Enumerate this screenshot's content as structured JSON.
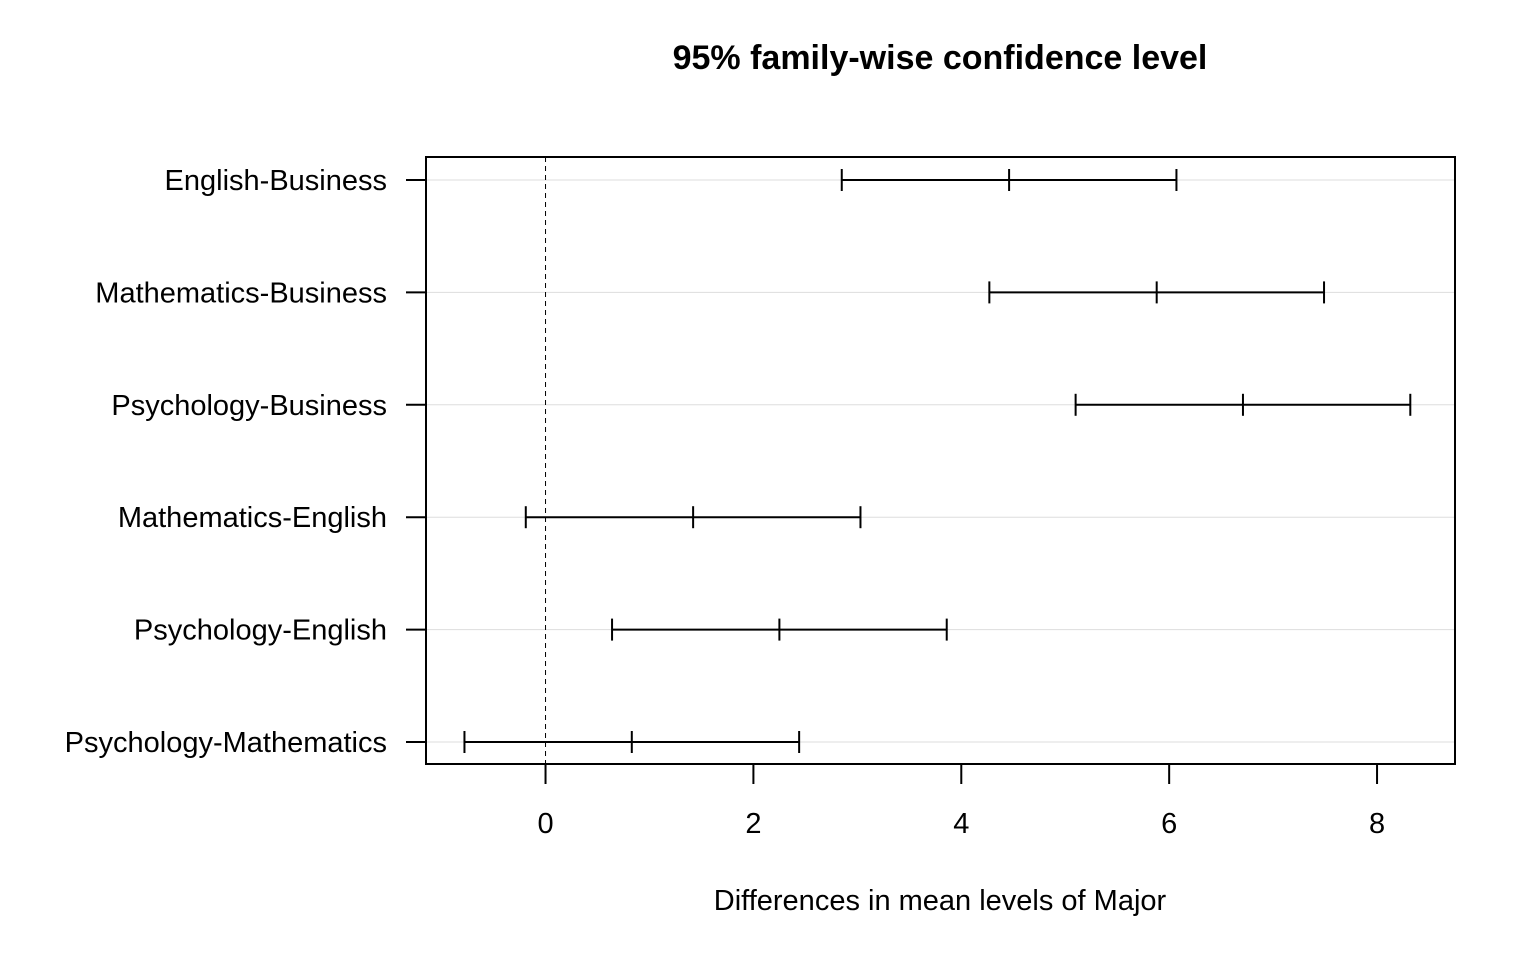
{
  "chart_data": {
    "type": "interval",
    "title": "95% family-wise confidence level",
    "xlabel": "Differences in mean levels of Major",
    "ylabel": "",
    "xlim": [
      -1.15,
      8.75
    ],
    "xticks": [
      0,
      2,
      4,
      6,
      8
    ],
    "zero_reference_line": true,
    "grid": "horizontal",
    "comparisons": [
      {
        "label": "English-Business",
        "lwr": 2.85,
        "diff": 4.46,
        "upr": 6.07
      },
      {
        "label": "Mathematics-Business",
        "lwr": 4.27,
        "diff": 5.88,
        "upr": 7.49
      },
      {
        "label": "Psychology-Business",
        "lwr": 5.1,
        "diff": 6.71,
        "upr": 8.32
      },
      {
        "label": "Mathematics-English",
        "lwr": -0.19,
        "diff": 1.42,
        "upr": 3.03
      },
      {
        "label": "Psychology-English",
        "lwr": 0.64,
        "diff": 2.25,
        "upr": 3.86
      },
      {
        "label": "Psychology-Mathematics",
        "lwr": -0.78,
        "diff": 0.83,
        "upr": 2.44
      }
    ]
  }
}
